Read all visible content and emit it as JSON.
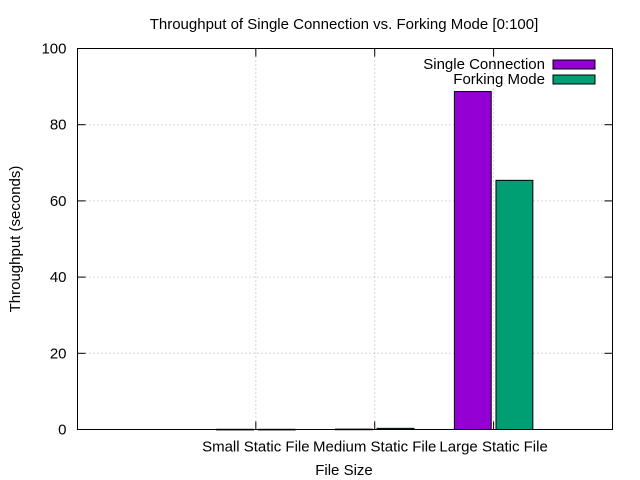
{
  "chart_data": {
    "type": "bar",
    "title": "Throughput of Single Connection vs. Forking Mode [0:100]",
    "xlabel": "File Size",
    "ylabel": "Throughput (seconds)",
    "categories": [
      "Small Static File",
      "Medium Static File",
      "Large Static File"
    ],
    "ylim": [
      0,
      100
    ],
    "yticks": [
      0,
      20,
      40,
      60,
      80,
      100
    ],
    "grid": true,
    "legend_position": "top-right",
    "series": [
      {
        "name": "Single Connection",
        "color": "#9400d3",
        "values": [
          0.05,
          0.1,
          88.7
        ]
      },
      {
        "name": "Forking Mode",
        "color": "#009e73",
        "values": [
          0.05,
          0.3,
          65.4
        ]
      }
    ]
  }
}
